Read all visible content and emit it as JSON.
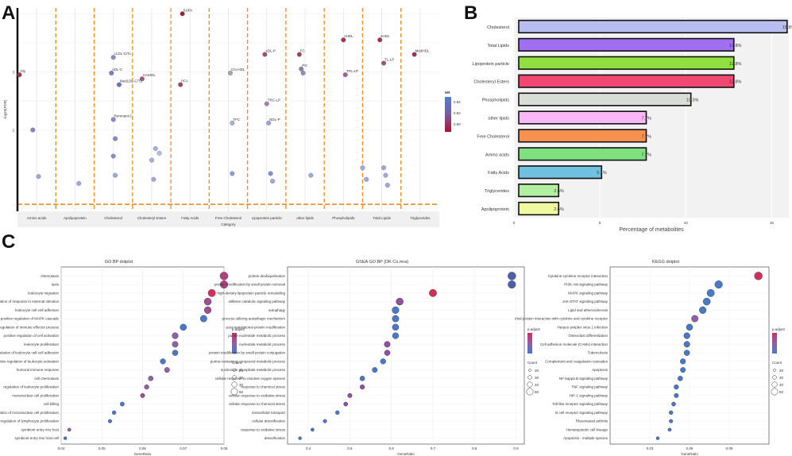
{
  "panels": {
    "a": {
      "letter": "A"
    },
    "b": {
      "letter": "B"
    },
    "c": {
      "letter": "C"
    }
  },
  "chart_data": [
    {
      "id": "A",
      "type": "scatter",
      "title": "",
      "xlabel": "Category",
      "ylabel": "-log10(FDR)",
      "categories": [
        "Amino acids",
        "Apolipoprotein",
        "Cholesterol",
        "Cholesteryl Esters",
        "Fatty Acids",
        "Free Cholesterol",
        "Lipoprotein particle",
        "other lipids",
        "Phospholipids",
        "Total Lipids",
        "Triglycerides"
      ],
      "ytick_labels": [
        "2",
        "3"
      ],
      "yticks": [
        2,
        3
      ],
      "ylim": [
        0.6,
        4.1
      ],
      "threshold_y": 0.72,
      "legend": {
        "title": "HR",
        "labels": [
          "0.94",
          "0.92",
          "0.90"
        ],
        "stops": [
          "#4f7fd0",
          "#7a5a9f",
          "#b01030"
        ]
      },
      "points": [
        {
          "cat": 0,
          "dx": -0.45,
          "y": 2.95,
          "label": "Gly",
          "c": "#a53040"
        },
        {
          "cat": 0,
          "dx": -0.1,
          "y": 2.0,
          "label": "",
          "c": "#9080c0"
        },
        {
          "cat": 0,
          "dx": 0.05,
          "y": 1.2,
          "label": "",
          "c": "#a0a8e0"
        },
        {
          "cat": 1,
          "dx": 0.1,
          "y": 1.08,
          "label": "",
          "c": "#a0a8e0"
        },
        {
          "cat": 2,
          "dx": 0.0,
          "y": 3.25,
          "label": "cLDL-C/TL",
          "c": "#8090d0"
        },
        {
          "cat": 2,
          "dx": -0.05,
          "y": 2.98,
          "label": "nDL-C",
          "c": "#7080c8"
        },
        {
          "cat": 2,
          "dx": 0.15,
          "y": 2.78,
          "label": "MedLDL-C/TL",
          "c": "#6a70c0"
        },
        {
          "cat": 2,
          "dx": 0.0,
          "y": 2.18,
          "label": "Remnant-C",
          "c": "#8a88c8"
        },
        {
          "cat": 2,
          "dx": 0.05,
          "y": 1.85,
          "label": "",
          "c": "#8088d0"
        },
        {
          "cat": 2,
          "dx": 0.0,
          "y": 1.55,
          "label": "",
          "c": "#8090d0"
        },
        {
          "cat": 2,
          "dx": 0.05,
          "y": 1.22,
          "label": "",
          "c": "#a0a8e0"
        },
        {
          "cat": 3,
          "dx": -0.25,
          "y": 2.88,
          "label": "CmHDL",
          "c": "#9a5a80"
        },
        {
          "cat": 3,
          "dx": 0.1,
          "y": 1.68,
          "label": "",
          "c": "#a8b0e8"
        },
        {
          "cat": 3,
          "dx": 0.2,
          "y": 1.6,
          "label": "",
          "c": "#b0c0ec"
        },
        {
          "cat": 3,
          "dx": 0.0,
          "y": 1.48,
          "label": "",
          "c": "#a8b0e0"
        },
        {
          "cat": 3,
          "dx": 0.05,
          "y": 1.15,
          "label": "",
          "c": "#a0a8e0"
        },
        {
          "cat": 4,
          "dx": -0.2,
          "y": 4.0,
          "label": "SUFA",
          "c": "#a02030"
        },
        {
          "cat": 4,
          "dx": -0.25,
          "y": 2.78,
          "label": "PFA",
          "c": "#a04060"
        },
        {
          "cat": 5,
          "dx": 0.05,
          "y": 2.98,
          "label": "Cm-HDL",
          "c": "#a8a0c0"
        },
        {
          "cat": 5,
          "dx": 0.1,
          "y": 2.12,
          "label": "TFC",
          "c": "#a8b0e0"
        },
        {
          "cat": 5,
          "dx": 0.1,
          "y": 1.25,
          "label": "",
          "c": "#9098d8"
        },
        {
          "cat": 6,
          "dx": -0.05,
          "y": 3.3,
          "label": "sDL-P",
          "c": "#a05070"
        },
        {
          "cat": 6,
          "dx": 0.0,
          "y": 2.45,
          "label": "TRC-LP",
          "c": "#a080b0"
        },
        {
          "cat": 6,
          "dx": 0.05,
          "y": 2.12,
          "label": "NDL-P",
          "c": "#a0a0d8"
        },
        {
          "cat": 6,
          "dx": 0.1,
          "y": 1.25,
          "label": "",
          "c": "#8890d0"
        },
        {
          "cat": 6,
          "dx": 0.15,
          "y": 1.12,
          "label": "",
          "c": "#a0a8e0"
        },
        {
          "cat": 7,
          "dx": -0.15,
          "y": 3.3,
          "label": "FC",
          "c": "#a04060"
        },
        {
          "cat": 7,
          "dx": -0.1,
          "y": 3.05,
          "label": "PG",
          "c": "#8f7fb0"
        },
        {
          "cat": 7,
          "dx": -0.05,
          "y": 2.98,
          "label": "",
          "c": "#8f8fc0"
        },
        {
          "cat": 7,
          "dx": 0.15,
          "y": 1.22,
          "label": "",
          "c": "#a0a8e0"
        },
        {
          "cat": 8,
          "dx": 0.0,
          "y": 3.55,
          "label": "sHDL",
          "c": "#a53050"
        },
        {
          "cat": 8,
          "dx": 0.05,
          "y": 2.95,
          "label": "TPL-LP",
          "c": "#a060a0"
        },
        {
          "cat": 8,
          "dx": 0.5,
          "y": 1.35,
          "label": "",
          "c": "#a0a8e0"
        },
        {
          "cat": 8,
          "dx": 0.6,
          "y": 1.15,
          "label": "",
          "c": "#a0a8e0"
        },
        {
          "cat": 9,
          "dx": -0.05,
          "y": 3.55,
          "label": "sHDL",
          "c": "#a53050"
        },
        {
          "cat": 9,
          "dx": 0.05,
          "y": 3.15,
          "label": "TL-LP",
          "c": "#a05070"
        },
        {
          "cat": 9,
          "dx": 0.05,
          "y": 1.35,
          "label": "",
          "c": "#a0a8e0"
        },
        {
          "cat": 9,
          "dx": 0.1,
          "y": 1.22,
          "label": "",
          "c": "#a0a8e0"
        },
        {
          "cat": 9,
          "dx": 0.15,
          "y": 1.05,
          "label": "",
          "c": "#a0a8e0"
        },
        {
          "cat": 10,
          "dx": -0.15,
          "y": 3.3,
          "label": "MedHDL",
          "c": "#a03050"
        }
      ]
    },
    {
      "id": "B",
      "type": "bar",
      "orientation": "horizontal",
      "xlabel": "Percentage of metabolites",
      "ylabel": "",
      "xlim": [
        0,
        16
      ],
      "xticks": [
        0,
        5,
        10,
        15
      ],
      "categories": [
        "Cholesterol",
        "Total Lipids",
        "Lipoprotein particle",
        "Cholesteryl Esters",
        "Phospholipids",
        "other lipids",
        "Free Cholesterol",
        "Amino acids",
        "Fatty Acids",
        "Triglycerides",
        "Apolipoprotein"
      ],
      "values": [
        15.9,
        12.8,
        12.8,
        12.8,
        10.3,
        7.7,
        7.7,
        7.7,
        5.1,
        2.6,
        2.6
      ],
      "value_labels": [
        "15.9%",
        "12.8%",
        "12.8%",
        "12.8%",
        "10.3%",
        "7.7%",
        "7.7%",
        "7.7%",
        "5.1%",
        "2.6%",
        "2.6%"
      ],
      "colors": [
        "#b8bff0",
        "#a070f0",
        "#90e040",
        "#f04870",
        "#d8ddd8",
        "#f8b8f8",
        "#f89050",
        "#80e080",
        "#70c0e0",
        "#b0f0a0",
        "#f0f8a0"
      ]
    },
    {
      "id": "C1",
      "type": "scatter",
      "title": "GO BP dotplot",
      "xlabel": "GeneRatio",
      "xlim": [
        0.04,
        0.08
      ],
      "xticks": [
        0.04,
        0.05,
        0.06,
        0.07,
        0.08
      ],
      "xtick_labels": [
        "0.04",
        "0.05",
        "0.06",
        "0.07",
        "0.08"
      ],
      "legend_title_color": "p.adjust",
      "legend_title_size": "Count",
      "size_labels": [
        "20",
        "30",
        "40",
        "50"
      ],
      "terms": [
        "chemotaxis",
        "taxis",
        "leukocyte migration",
        "negative regulation of response to external stimulus",
        "leukocyte cell-cell adhesion",
        "positive regulation of MAPK cascade",
        "regulation of immune effector process",
        "positive regulation of cell activation",
        "leukocyte proliferation",
        "regulation of leukocyte cell-cell adhesion",
        "positive regulation of leukocyte activation",
        "humoral immune response",
        "cell chemotaxis",
        "regulation of leukocyte proliferation",
        "mononuclear cell proliferation",
        "cell killing",
        "regulation of mononuclear cell proliferation",
        "regulation of lymphocyte proliferation",
        "symbiont entry into host",
        "symbiont entry into host cell"
      ],
      "ratios": [
        0.08,
        0.08,
        0.077,
        0.076,
        0.076,
        0.075,
        0.07,
        0.068,
        0.068,
        0.068,
        0.065,
        0.066,
        0.062,
        0.061,
        0.06,
        0.055,
        0.053,
        0.052,
        0.042,
        0.041
      ],
      "colors": [
        "#b04080",
        "#b04080",
        "#d03060",
        "#a05090",
        "#a05090",
        "#4878c8",
        "#4878c8",
        "#9060a8",
        "#9060a8",
        "#4878c8",
        "#4878c8",
        "#9060a8",
        "#9060a8",
        "#9060a8",
        "#a05090",
        "#4878c8",
        "#4878c8",
        "#4878c8",
        "#9060a8",
        "#4878c8"
      ]
    },
    {
      "id": "C2",
      "type": "scatter",
      "title": "GSEA GO BP (DK Co.mra)",
      "xlabel": "GeneRatio",
      "xlim": [
        0.35,
        0.92
      ],
      "xticks": [
        0.4,
        0.5,
        0.6,
        0.7,
        0.8,
        0.9
      ],
      "xtick_labels": [
        "0.4",
        "0.5",
        "0.6",
        "0.7",
        "0.8",
        "0.9"
      ],
      "legend_title_color": "p.adjust",
      "legend_title_size": "Count",
      "size_labels": [
        "20",
        "30",
        "40",
        "50"
      ],
      "terms": [
        "protein deubiquitination",
        "protein modification by small protein removal",
        "high-density lipoprotein particle remodeling",
        "stilbene catabolic signaling pathway",
        "autophagy",
        "process utilizing autophagic mechanism",
        "post-translational protein modification",
        "purine nucleotide metabolic process",
        "nucleotide metabolic process",
        "protein modification by small protein conjugation",
        "purine-containing compound metabolic process",
        "nucleoside phosphate metabolic process",
        "cellular response to reactive oxygen species",
        "response to chemical stress",
        "cellular response to oxidative stress",
        "cellular response to chemical stress",
        "intracellular transport",
        "cellular detoxification",
        "response to oxidative stress",
        "detoxification"
      ],
      "ratios": [
        0.89,
        0.89,
        0.7,
        0.62,
        0.61,
        0.61,
        0.61,
        0.61,
        0.59,
        0.59,
        0.58,
        0.56,
        0.53,
        0.53,
        0.5,
        0.49,
        0.47,
        0.44,
        0.41,
        0.38
      ],
      "colors": [
        "#5060a8",
        "#5060a8",
        "#d03050",
        "#9050a0",
        "#4878c8",
        "#4878c8",
        "#4878c8",
        "#4878c8",
        "#9050a0",
        "#9050a0",
        "#4878c8",
        "#4878c8",
        "#4878c8",
        "#9050a0",
        "#9050a0",
        "#9050a0",
        "#4878c8",
        "#4878c8",
        "#4878c8",
        "#4878c8"
      ]
    },
    {
      "id": "C3",
      "type": "scatter",
      "title": "KEGG dotplot",
      "xlabel": "GeneRatio",
      "xlim": [
        0.0,
        0.12
      ],
      "xticks": [
        0.03,
        0.06,
        0.09
      ],
      "xtick_labels": [
        "0.03",
        "0.06",
        "0.09"
      ],
      "legend_title_color": "p.adjust",
      "legend_title_size": "Count",
      "size_labels": [
        "20",
        "30",
        "40",
        "50"
      ],
      "terms": [
        "Cytokine-cytokine receptor interaction",
        "PI3K-Akt signaling pathway",
        "MAPK signaling pathway",
        "JAK-STAT signaling pathway",
        "Lipid and atherosclerosis",
        "Viral protein interaction with cytokine and cytokine receptor",
        "Herpes simplex virus 1 infection",
        "Osteoclast differentiation",
        "Cell adhesion molecule (CAMs) interaction",
        "Tuberculosis",
        "Complement and coagulation cascades",
        "Apoptosis",
        "NF-kappa B signaling pathway",
        "TNF signaling pathway",
        "HIF-1 signaling pathway",
        "Toll-like receptor signaling pathway",
        "B cell receptor signaling pathway",
        "Rheumatoid arthritis",
        "Hematopoietic cell lineage",
        "Apoptosis - multiple species"
      ],
      "ratios": [
        0.112,
        0.082,
        0.076,
        0.073,
        0.07,
        0.064,
        0.06,
        0.058,
        0.058,
        0.058,
        0.055,
        0.055,
        0.053,
        0.05,
        0.05,
        0.048,
        0.046,
        0.046,
        0.045,
        0.036
      ],
      "colors": [
        "#d03060",
        "#4878c8",
        "#4878c8",
        "#4878c8",
        "#4878c8",
        "#9060a8",
        "#4878c8",
        "#4878c8",
        "#4878c8",
        "#4878c8",
        "#4878c8",
        "#4878c8",
        "#4878c8",
        "#4878c8",
        "#4878c8",
        "#4878c8",
        "#4878c8",
        "#4878c8",
        "#4878c8",
        "#4878c8"
      ]
    }
  ]
}
